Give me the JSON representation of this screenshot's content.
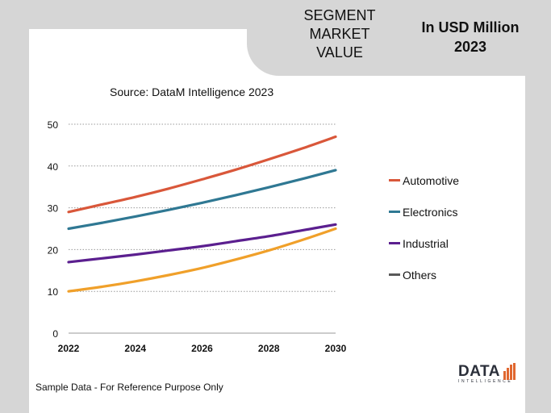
{
  "header": {
    "title": "SEGMENT\nMARKET\nVALUE",
    "unit_line1": "In USD Million",
    "unit_line2": "2023"
  },
  "source": "Source: DataM Intelligence  2023",
  "footnote": "Sample Data - For Reference Purpose Only",
  "logo": {
    "main": "DATA",
    "sub": "INTELLIGENCE"
  },
  "colors": {
    "automotive": "#d9573a",
    "electronics": "#2f7893",
    "industrial": "#5b1f8f",
    "others": "#f0a02a",
    "grid": "#9a9a9a"
  },
  "chart_data": {
    "type": "line",
    "title": "",
    "xlabel": "",
    "ylabel": "",
    "x": [
      2022,
      2023,
      2024,
      2025,
      2026,
      2027,
      2028,
      2029,
      2030
    ],
    "x_ticks": [
      "2022",
      "2024",
      "2026",
      "2028",
      "2030"
    ],
    "y_ticks": [
      "0",
      "10",
      "20",
      "30",
      "40",
      "50"
    ],
    "xlim": [
      2022,
      2030
    ],
    "ylim": [
      0,
      50
    ],
    "grid": "horizontal-dotted",
    "legend_position": "right",
    "series": [
      {
        "name": "Automotive",
        "color_key": "automotive",
        "values": [
          29,
          30.8,
          32.6,
          34.6,
          36.8,
          39.1,
          41.6,
          44.2,
          47
        ]
      },
      {
        "name": "Electronics",
        "color_key": "electronics",
        "values": [
          25,
          26.4,
          27.9,
          29.5,
          31.2,
          33,
          34.9,
          36.9,
          39
        ]
      },
      {
        "name": "Industrial",
        "color_key": "industrial",
        "values": [
          17,
          17.9,
          18.8,
          19.8,
          20.8,
          22,
          23.2,
          24.6,
          26
        ]
      },
      {
        "name": "Others",
        "color_key": "others",
        "values": [
          10,
          11.1,
          12.4,
          13.9,
          15.6,
          17.6,
          19.8,
          22.3,
          25
        ]
      }
    ]
  }
}
